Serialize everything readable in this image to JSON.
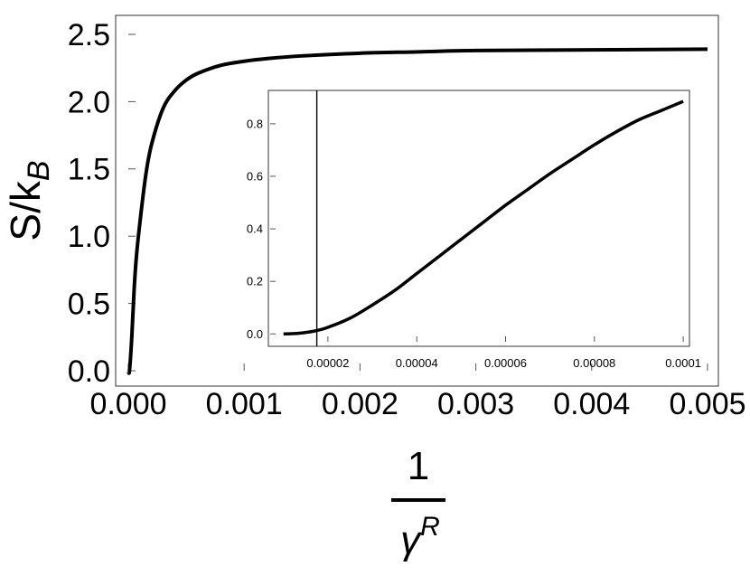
{
  "chart_data": [
    {
      "type": "line",
      "title": "",
      "xlabel_numerator": "1",
      "xlabel_denominator_base": "γ",
      "xlabel_denominator_sup": "R",
      "ylabel_base": "S/k",
      "ylabel_sub": "B",
      "xlim": [
        0,
        0.005
      ],
      "ylim": [
        0,
        2.5
      ],
      "grid": false,
      "xticks": [
        0.0,
        0.001,
        0.002,
        0.003,
        0.004,
        0.005
      ],
      "xtick_labels": [
        "0.000",
        "0.001",
        "0.002",
        "0.003",
        "0.004",
        "0.005"
      ],
      "yticks": [
        0.0,
        0.5,
        1.0,
        1.5,
        2.0,
        2.5
      ],
      "ytick_labels": [
        "0.0",
        "0.5",
        "1.0",
        "1.5",
        "2.0",
        "2.5"
      ],
      "series": [
        {
          "color": "#000000",
          "x": [
            0.0,
            1e-05,
            3e-05,
            5e-05,
            7e-05,
            0.0001,
            0.00015,
            0.0002,
            0.0003,
            0.0004,
            0.0005,
            0.0006,
            0.0008,
            0.001,
            0.0012,
            0.0015,
            0.002,
            0.0025,
            0.003,
            0.004,
            0.005
          ],
          "y": [
            0.0,
            0.0,
            0.25,
            0.6,
            0.85,
            1.1,
            1.45,
            1.68,
            1.95,
            2.08,
            2.16,
            2.21,
            2.27,
            2.3,
            2.32,
            2.34,
            2.36,
            2.37,
            2.38,
            2.385,
            2.39
          ]
        }
      ]
    },
    {
      "type": "line",
      "title": "",
      "xlim": [
        7e-06,
        0.000101
      ],
      "ylim": [
        -0.03,
        0.92
      ],
      "grid": false,
      "xticks": [
        2e-05,
        4e-05,
        6e-05,
        8e-05,
        0.0001
      ],
      "xtick_labels": [
        "0.00002",
        "0.00004",
        "0.00006",
        "0.00008",
        "0.0001"
      ],
      "yticks": [
        0.0,
        0.2,
        0.4,
        0.6,
        0.8
      ],
      "ytick_labels": [
        "0.0",
        "0.2",
        "0.4",
        "0.6",
        "0.8"
      ],
      "vertical_line_x": 1.75e-05,
      "series": [
        {
          "color": "#000000",
          "x": [
            1e-05,
            1.3e-05,
            1.6e-05,
            1.8e-05,
            2e-05,
            2.5e-05,
            3e-05,
            3.5e-05,
            4e-05,
            4.5e-05,
            5e-05,
            5.5e-05,
            6e-05,
            6.5e-05,
            7e-05,
            7.5e-05,
            8e-05,
            8.5e-05,
            9e-05,
            9.5e-05,
            0.0001
          ],
          "y": [
            0.0,
            0.002,
            0.008,
            0.015,
            0.025,
            0.06,
            0.11,
            0.165,
            0.23,
            0.295,
            0.36,
            0.425,
            0.49,
            0.55,
            0.61,
            0.665,
            0.72,
            0.77,
            0.815,
            0.85,
            0.885
          ]
        }
      ]
    }
  ]
}
